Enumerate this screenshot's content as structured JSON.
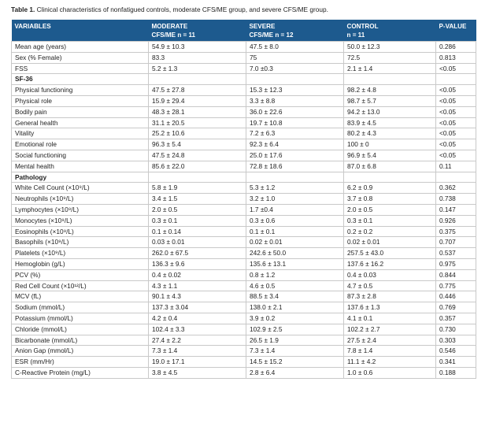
{
  "caption": {
    "label": "Table 1.",
    "text": "Clinical characteristics of nonfatigued controls, moderate CFS/ME group, and severe CFS/ME group."
  },
  "headers": [
    {
      "line1": "VARIABLES",
      "line2": ""
    },
    {
      "line1": "MODERATE",
      "line2": "CFS/ME n = 11"
    },
    {
      "line1": "SEVERE",
      "line2": "CFS/ME n = 12"
    },
    {
      "line1": "CONTROL",
      "line2": "n = 11"
    },
    {
      "line1": "P-VALUE",
      "line2": ""
    }
  ],
  "rows": [
    {
      "cells": [
        "Mean age (years)",
        "54.9 ± 10.3",
        "47.5 ± 8.0",
        "50.0 ± 12.3",
        "0.286"
      ]
    },
    {
      "cells": [
        "Sex (% Female)",
        "83.3",
        "75",
        "72.5",
        "0.813"
      ]
    },
    {
      "cells": [
        "FSS",
        "5.2 ± 1.3",
        "7.0 ±0.3",
        "2.1 ± 1.4",
        "<0.05"
      ]
    },
    {
      "section": true,
      "cells": [
        "SF-36",
        "",
        "",
        "",
        ""
      ]
    },
    {
      "cells": [
        "Physical functioning",
        "47.5 ± 27.8",
        "15.3 ± 12.3",
        "98.2 ± 4.8",
        "<0.05"
      ]
    },
    {
      "cells": [
        "Physical role",
        "15.9 ± 29.4",
        "3.3 ± 8.8",
        "98.7 ± 5.7",
        "<0.05"
      ]
    },
    {
      "cells": [
        "Bodily pain",
        "48.3 ± 28.1",
        "36.0 ± 22.6",
        "94.2 ± 13.0",
        "<0.05"
      ]
    },
    {
      "cells": [
        "General health",
        "31.1 ± 20.5",
        "19.7 ± 10.8",
        "83.9 ± 4.5",
        "<0.05"
      ]
    },
    {
      "cells": [
        "Vitality",
        "25.2 ± 10.6",
        "7.2 ± 6.3",
        "80.2 ± 4.3",
        "<0.05"
      ]
    },
    {
      "cells": [
        "Emotional role",
        "96.3 ± 5.4",
        "92.3 ± 6.4",
        "100 ± 0",
        "<0.05"
      ]
    },
    {
      "cells": [
        "Social functioning",
        "47.5 ± 24.8",
        "25.0 ± 17.6",
        "96.9 ± 5.4",
        "<0.05"
      ]
    },
    {
      "cells": [
        "Mental health",
        "85.6 ± 22.0",
        "72.8 ± 18.6",
        "87.0 ± 6.8",
        "0.11"
      ]
    },
    {
      "section": true,
      "cells": [
        "Pathology",
        "",
        "",
        "",
        ""
      ]
    },
    {
      "cells": [
        "White Cell Count (×10⁹/L)",
        "5.8 ± 1.9",
        "5.3 ± 1.2",
        "6.2 ± 0.9",
        "0.362"
      ]
    },
    {
      "cells": [
        "Neutrophils (×10⁹/L)",
        "3.4 ± 1.5",
        "3.2 ± 1.0",
        "3.7 ± 0.8",
        "0.738"
      ]
    },
    {
      "cells": [
        "Lymphocytes (×10⁹/L)",
        "2.0 ± 0.5",
        "1.7 ±0.4",
        "2.0 ± 0.5",
        "0.147"
      ]
    },
    {
      "cells": [
        "Monocytes (×10⁹/L)",
        "0.3 ± 0.1",
        "0.3 ± 0.6",
        "0.3 ± 0.1",
        "0.926"
      ]
    },
    {
      "cells": [
        "Eosinophils (×10⁹/L)",
        "0.1 ± 0.14",
        "0.1 ± 0.1",
        "0.2 ± 0.2",
        "0.375"
      ]
    },
    {
      "cells": [
        "Basophils (×10⁹/L)",
        "0.03 ± 0.01",
        "0.02 ± 0.01",
        "0.02 ± 0.01",
        "0.707"
      ]
    },
    {
      "cells": [
        "Platelets (×10⁹/L)",
        "262.0 ± 67.5",
        "242.6 ± 50.0",
        "257.5 ± 43.0",
        "0.537"
      ]
    },
    {
      "cells": [
        "Hemoglobin (g/L)",
        "136.3 ± 9.6",
        "135.6 ± 13.1",
        "137.6 ± 16.2",
        "0.975"
      ]
    },
    {
      "cells": [
        "PCV (%)",
        "0.4 ± 0.02",
        "0.8 ± 1.2",
        "0.4 ± 0.03",
        "0.844"
      ]
    },
    {
      "cells": [
        "Red Cell Count (×10¹²/L)",
        "4.3 ± 1.1",
        "4.6 ± 0.5",
        "4.7 ± 0.5",
        "0.775"
      ]
    },
    {
      "cells": [
        "MCV (fL)",
        "90.1 ± 4.3",
        "88.5 ± 3.4",
        "87.3 ± 2.8",
        "0.446"
      ]
    },
    {
      "cells": [
        "Sodium (mmol/L)",
        "137.3 ± 3.04",
        "138.0 ± 2.1",
        "137.6 ± 1.3",
        "0.769"
      ]
    },
    {
      "cells": [
        "Potassium (mmol/L)",
        "4.2 ± 0.4",
        "3.9 ± 0.2",
        "4.1 ± 0.1",
        "0.357"
      ]
    },
    {
      "cells": [
        "Chloride (mmol/L)",
        "102.4 ± 3.3",
        "102.9 ± 2.5",
        "102.2 ± 2.7",
        "0.730"
      ]
    },
    {
      "cells": [
        "Bicarbonate (mmol/L)",
        "27.4 ± 2.2",
        "26.5 ± 1.9",
        "27.5 ± 2.4",
        "0.303"
      ]
    },
    {
      "cells": [
        "Anion Gap (mmol/L)",
        "7.3 ± 1.4",
        "7.3 ± 1.4",
        "7.8 ± 1.4",
        "0.546"
      ]
    },
    {
      "cells": [
        "ESR (mm/Hr)",
        "19.0 ± 17.1",
        "14.5 ± 15.2",
        "11.1 ± 4.2",
        "0.341"
      ]
    },
    {
      "cells": [
        "C-Reactive Protein (mg/L)",
        "3.8 ± 4.5",
        "2.8 ± 6.4",
        "1.0 ± 0.6",
        "0.188"
      ]
    }
  ]
}
